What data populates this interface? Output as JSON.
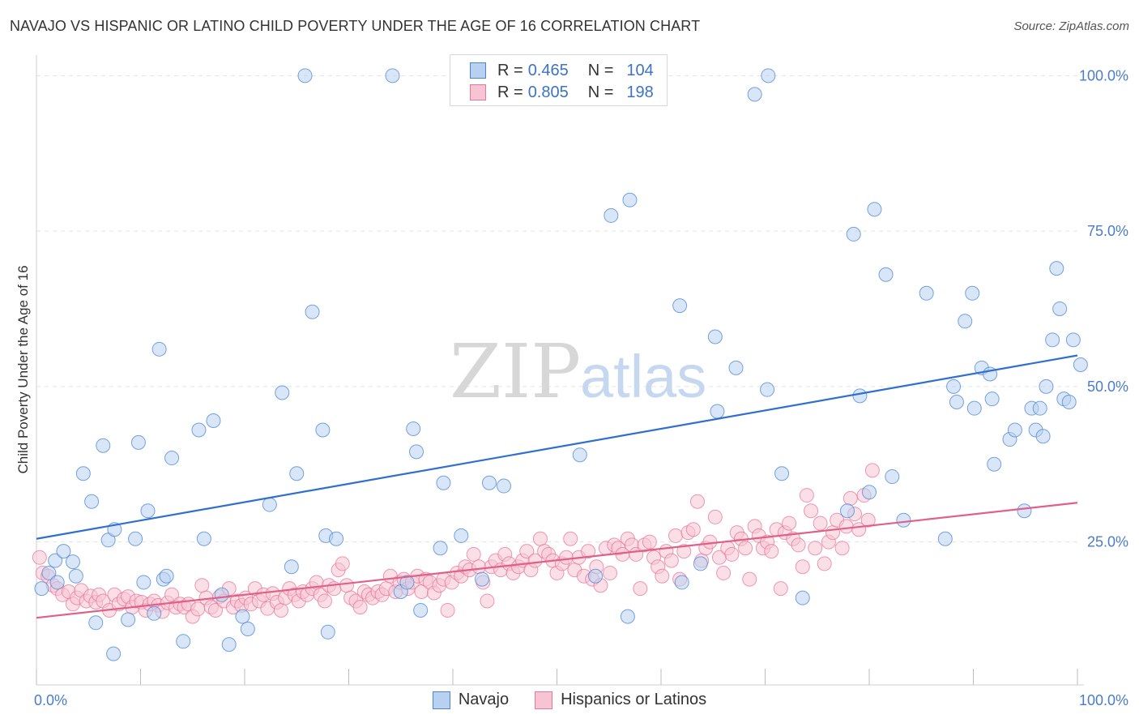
{
  "title": "NAVAJO VS HISPANIC OR LATINO CHILD POVERTY UNDER THE AGE OF 16 CORRELATION CHART",
  "source": "Source: ZipAtlas.com",
  "watermark": {
    "zip": "ZIP",
    "atlas": "atlas"
  },
  "colors": {
    "navajo": "#4a86d6",
    "navajo_fill": "#b9d1f1",
    "hisp": "#e8779a",
    "hisp_fill": "#f7c4d4"
  },
  "legend": {
    "rows": [
      {
        "r_label": "R =",
        "r_value": "0.465",
        "n_label": "N =",
        "n_value": "104"
      },
      {
        "r_label": "R =",
        "r_value": "0.805",
        "n_label": "N =",
        "n_value": "198"
      }
    ]
  },
  "bottom_legend": {
    "navajo": "Navajo",
    "hisp": "Hispanics or Latinos"
  },
  "chart_data": {
    "type": "scatter",
    "xlabel": "",
    "ylabel": "Child Poverty Under the Age of 16",
    "x_tick_labels": [
      "0.0%",
      "100.0%"
    ],
    "y_tick_labels": [
      "25.0%",
      "50.0%",
      "75.0%",
      "100.0%"
    ],
    "xlim": [
      0,
      100
    ],
    "ylim": [
      2,
      102
    ],
    "grid": true,
    "series": [
      {
        "name": "Navajo",
        "R": 0.465,
        "N": 104,
        "trend": {
          "x0": 0,
          "y0": 25.5,
          "x1": 100,
          "y1": 55.0
        },
        "points": [
          [
            0.5,
            17.5
          ],
          [
            1.2,
            20
          ],
          [
            1.8,
            22
          ],
          [
            2,
            18.5
          ],
          [
            2.6,
            23.5
          ],
          [
            3.5,
            21.8
          ],
          [
            3.8,
            19.5
          ],
          [
            4.5,
            36
          ],
          [
            5.3,
            31.5
          ],
          [
            5.7,
            12
          ],
          [
            6.4,
            40.5
          ],
          [
            6.9,
            25.3
          ],
          [
            7.5,
            27
          ],
          [
            7.4,
            7
          ],
          [
            8.8,
            12.5
          ],
          [
            9.5,
            25.5
          ],
          [
            9.8,
            41
          ],
          [
            10.3,
            18.5
          ],
          [
            10.7,
            30
          ],
          [
            11.3,
            13.5
          ],
          [
            11.8,
            56
          ],
          [
            12.2,
            19
          ],
          [
            12.5,
            19.5
          ],
          [
            13,
            38.5
          ],
          [
            14.1,
            9
          ],
          [
            15.6,
            43
          ],
          [
            16.1,
            25.5
          ],
          [
            17,
            44.5
          ],
          [
            17.8,
            16.5
          ],
          [
            18.5,
            8.5
          ],
          [
            19.8,
            13
          ],
          [
            20.3,
            11
          ],
          [
            22.4,
            31
          ],
          [
            23.6,
            49
          ],
          [
            24.5,
            21
          ],
          [
            25,
            36
          ],
          [
            25.8,
            100
          ],
          [
            27.5,
            43
          ],
          [
            27.8,
            26
          ],
          [
            28,
            10.5
          ],
          [
            28.8,
            25.5
          ],
          [
            34.2,
            100
          ],
          [
            35,
            17
          ],
          [
            35.6,
            18.5
          ],
          [
            36.2,
            43.2
          ],
          [
            36.5,
            39.5
          ],
          [
            36.9,
            14
          ],
          [
            38.8,
            24
          ],
          [
            39.1,
            34.5
          ],
          [
            40.8,
            26
          ],
          [
            42.8,
            19
          ],
          [
            43.5,
            34.5
          ],
          [
            44.9,
            34
          ],
          [
            52.2,
            39
          ],
          [
            53.7,
            19.5
          ],
          [
            55.2,
            77.5
          ],
          [
            56.8,
            13
          ],
          [
            57,
            80
          ],
          [
            61.8,
            63
          ],
          [
            62,
            18.5
          ],
          [
            63.8,
            21.5
          ],
          [
            65.2,
            58
          ],
          [
            65.4,
            46
          ],
          [
            67.2,
            53
          ],
          [
            69,
            97
          ],
          [
            70.3,
            100
          ],
          [
            70.2,
            49.5
          ],
          [
            71.6,
            36
          ],
          [
            73.6,
            16
          ],
          [
            77.9,
            30
          ],
          [
            78.5,
            74.5
          ],
          [
            79.1,
            48.5
          ],
          [
            80,
            33
          ],
          [
            80.5,
            78.5
          ],
          [
            81.6,
            68
          ],
          [
            82.2,
            35.5
          ],
          [
            83.3,
            28.5
          ],
          [
            85.5,
            65
          ],
          [
            87.3,
            25.5
          ],
          [
            88.1,
            50
          ],
          [
            88.4,
            47.5
          ],
          [
            89.2,
            60.5
          ],
          [
            89.9,
            65
          ],
          [
            90.1,
            46.5
          ],
          [
            90.8,
            53
          ],
          [
            91.6,
            52
          ],
          [
            91.8,
            48
          ],
          [
            92,
            37.5
          ],
          [
            93.5,
            41.5
          ],
          [
            94,
            43
          ],
          [
            94.9,
            30
          ],
          [
            95.6,
            46.5
          ],
          [
            96,
            43
          ],
          [
            96.4,
            46.5
          ],
          [
            96.7,
            42
          ],
          [
            97,
            50
          ],
          [
            97.6,
            57.5
          ],
          [
            98,
            69
          ],
          [
            98.3,
            62.5
          ],
          [
            98.7,
            48
          ],
          [
            99.2,
            47.5
          ],
          [
            99.6,
            57.5
          ],
          [
            100.3,
            53.5
          ],
          [
            26.5,
            62
          ]
        ]
      },
      {
        "name": "Hispanics or Latinos",
        "R": 0.805,
        "N": 198,
        "trend": {
          "x0": 0,
          "y0": 12.8,
          "x1": 100,
          "y1": 31.3
        },
        "points": [
          [
            0.3,
            22.5
          ],
          [
            0.6,
            20
          ],
          [
            1.1,
            19.5
          ],
          [
            1.6,
            18
          ],
          [
            2,
            17.5
          ],
          [
            2.5,
            16.5
          ],
          [
            3.1,
            17
          ],
          [
            3.5,
            15
          ],
          [
            3.9,
            16
          ],
          [
            4.3,
            17.2
          ],
          [
            4.8,
            15.5
          ],
          [
            5.2,
            16.3
          ],
          [
            5.7,
            15.3
          ],
          [
            6,
            16.5
          ],
          [
            6.4,
            15.5
          ],
          [
            7,
            14
          ],
          [
            7.5,
            16.5
          ],
          [
            7.9,
            15
          ],
          [
            8.4,
            15.8
          ],
          [
            8.8,
            16.2
          ],
          [
            9.2,
            14.5
          ],
          [
            9.6,
            15.5
          ],
          [
            10.1,
            15.3
          ],
          [
            10.5,
            14
          ],
          [
            10.9,
            15
          ],
          [
            11.3,
            15.5
          ],
          [
            11.7,
            14.8
          ],
          [
            12.1,
            13.8
          ],
          [
            12.6,
            15.2
          ],
          [
            13,
            16.5
          ],
          [
            13.4,
            14.5
          ],
          [
            13.8,
            15
          ],
          [
            14.2,
            14.5
          ],
          [
            14.6,
            15
          ],
          [
            15,
            13
          ],
          [
            15.5,
            14.2
          ],
          [
            15.9,
            18
          ],
          [
            16.3,
            16
          ],
          [
            16.8,
            14.5
          ],
          [
            17.2,
            14
          ],
          [
            17.6,
            16.2
          ],
          [
            18,
            15.5
          ],
          [
            18.5,
            17.5
          ],
          [
            18.9,
            14.5
          ],
          [
            19.3,
            15.5
          ],
          [
            19.7,
            14.8
          ],
          [
            20.1,
            16
          ],
          [
            20.6,
            15
          ],
          [
            21,
            17.5
          ],
          [
            21.4,
            15.5
          ],
          [
            21.8,
            16.5
          ],
          [
            22.2,
            14.3
          ],
          [
            22.7,
            16.7
          ],
          [
            23.1,
            15.3
          ],
          [
            23.5,
            14
          ],
          [
            23.9,
            16
          ],
          [
            24.3,
            17.5
          ],
          [
            24.8,
            16.5
          ],
          [
            25.2,
            15.5
          ],
          [
            25.6,
            17
          ],
          [
            26,
            16.5
          ],
          [
            26.5,
            17.5
          ],
          [
            26.9,
            18.5
          ],
          [
            27.3,
            16.5
          ],
          [
            27.7,
            15.5
          ],
          [
            28.1,
            18
          ],
          [
            28.6,
            17.5
          ],
          [
            29,
            20.5
          ],
          [
            29.4,
            21.5
          ],
          [
            29.8,
            18
          ],
          [
            30.2,
            16
          ],
          [
            30.7,
            15.5
          ],
          [
            31.1,
            14.5
          ],
          [
            31.5,
            17
          ],
          [
            31.9,
            16.5
          ],
          [
            32.3,
            16
          ],
          [
            32.8,
            17
          ],
          [
            33.2,
            16.5
          ],
          [
            33.6,
            17.5
          ],
          [
            34,
            19.5
          ],
          [
            34.5,
            17
          ],
          [
            34.9,
            18.5
          ],
          [
            35.3,
            19
          ],
          [
            35.7,
            17.5
          ],
          [
            36.1,
            18.5
          ],
          [
            36.6,
            19.5
          ],
          [
            37,
            17
          ],
          [
            37.4,
            19
          ],
          [
            37.8,
            18.5
          ],
          [
            38.2,
            16.8
          ],
          [
            38.7,
            18
          ],
          [
            39.1,
            19
          ],
          [
            39.5,
            14
          ],
          [
            39.9,
            18.5
          ],
          [
            40.4,
            20
          ],
          [
            40.8,
            19.5
          ],
          [
            41.2,
            21
          ],
          [
            41.6,
            20.5
          ],
          [
            42,
            23
          ],
          [
            42.5,
            21
          ],
          [
            42.9,
            18.5
          ],
          [
            43.3,
            15.5
          ],
          [
            43.7,
            21
          ],
          [
            44.1,
            22
          ],
          [
            44.6,
            20.5
          ],
          [
            45,
            23
          ],
          [
            45.4,
            21.5
          ],
          [
            45.8,
            20
          ],
          [
            46.3,
            21
          ],
          [
            46.7,
            22
          ],
          [
            47.1,
            23.5
          ],
          [
            47.5,
            20.5
          ],
          [
            47.9,
            22
          ],
          [
            48.4,
            25.5
          ],
          [
            48.8,
            23.5
          ],
          [
            49.2,
            23
          ],
          [
            49.6,
            22
          ],
          [
            50,
            20
          ],
          [
            50.5,
            21.5
          ],
          [
            50.9,
            22.5
          ],
          [
            51.3,
            25.5
          ],
          [
            51.7,
            20.5
          ],
          [
            52.1,
            22.5
          ],
          [
            52.6,
            19.5
          ],
          [
            53,
            23.5
          ],
          [
            53.4,
            19
          ],
          [
            53.8,
            21
          ],
          [
            54.2,
            18
          ],
          [
            54.7,
            24
          ],
          [
            55.1,
            20
          ],
          [
            55.5,
            24.5
          ],
          [
            55.9,
            24
          ],
          [
            56.3,
            23
          ],
          [
            56.8,
            25.5
          ],
          [
            57.2,
            24.5
          ],
          [
            57.6,
            23
          ],
          [
            58,
            17.5
          ],
          [
            58.4,
            24.5
          ],
          [
            58.9,
            25
          ],
          [
            59.3,
            22.5
          ],
          [
            59.7,
            21
          ],
          [
            60.1,
            19.5
          ],
          [
            60.5,
            23.5
          ],
          [
            61,
            22
          ],
          [
            61.4,
            26
          ],
          [
            61.8,
            19
          ],
          [
            62.2,
            23.5
          ],
          [
            62.6,
            26.5
          ],
          [
            63.1,
            27
          ],
          [
            63.5,
            31.5
          ],
          [
            63.9,
            22
          ],
          [
            64.3,
            24
          ],
          [
            64.7,
            25
          ],
          [
            65.2,
            29
          ],
          [
            65.6,
            22.5
          ],
          [
            66,
            20
          ],
          [
            66.4,
            24
          ],
          [
            66.8,
            23
          ],
          [
            67.3,
            26.5
          ],
          [
            67.7,
            25.5
          ],
          [
            68.1,
            24
          ],
          [
            68.5,
            19
          ],
          [
            69,
            27.5
          ],
          [
            69.4,
            26
          ],
          [
            69.8,
            24
          ],
          [
            70.2,
            25
          ],
          [
            70.6,
            23.5
          ],
          [
            71.1,
            27
          ],
          [
            71.5,
            17.5
          ],
          [
            71.9,
            26.5
          ],
          [
            72.3,
            28
          ],
          [
            72.7,
            25.5
          ],
          [
            73.2,
            24.5
          ],
          [
            73.6,
            21
          ],
          [
            74,
            32.5
          ],
          [
            74.4,
            30
          ],
          [
            74.8,
            24
          ],
          [
            75.3,
            28
          ],
          [
            75.7,
            21.5
          ],
          [
            76.1,
            25
          ],
          [
            76.5,
            26.5
          ],
          [
            76.9,
            28.5
          ],
          [
            77.4,
            24
          ],
          [
            77.8,
            27.5
          ],
          [
            78.2,
            32
          ],
          [
            78.6,
            29.5
          ],
          [
            79,
            27
          ],
          [
            79.5,
            32.5
          ],
          [
            79.9,
            28.5
          ],
          [
            80.3,
            36.5
          ]
        ]
      }
    ]
  }
}
